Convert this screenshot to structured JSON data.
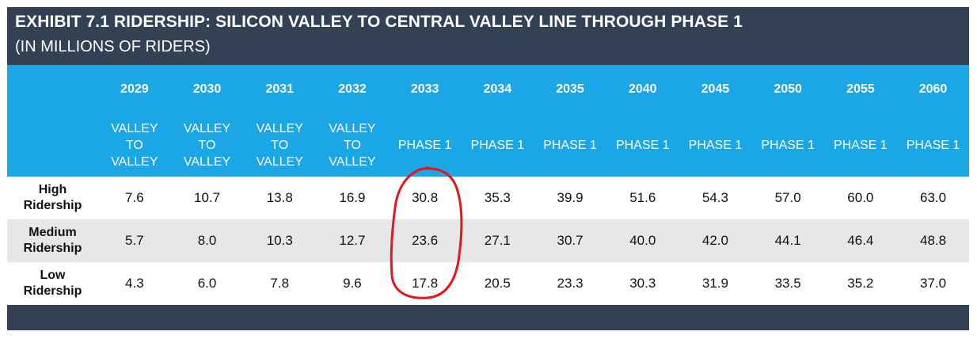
{
  "exhibit": {
    "title": "EXHIBIT 7.1 RIDERSHIP: SILICON VALLEY TO CENTRAL VALLEY LINE THROUGH PHASE 1",
    "subtitle": "(IN MILLIONS OF RIDERS)"
  },
  "table": {
    "years": [
      "2029",
      "2030",
      "2031",
      "2032",
      "2033",
      "2034",
      "2035",
      "2040",
      "2045",
      "2050",
      "2055",
      "2060"
    ],
    "phases": [
      "VALLEY\nTO\nVALLEY",
      "VALLEY\nTO\nVALLEY",
      "VALLEY\nTO\nVALLEY",
      "VALLEY\nTO\nVALLEY",
      "PHASE 1",
      "PHASE 1",
      "PHASE 1",
      "PHASE 1",
      "PHASE 1",
      "PHASE 1",
      "PHASE 1",
      "PHASE 1"
    ],
    "rows": [
      {
        "label": "High\nRidership",
        "values": [
          "7.6",
          "10.7",
          "13.8",
          "16.9",
          "30.8",
          "35.3",
          "39.9",
          "51.6",
          "54.3",
          "57.0",
          "60.0",
          "63.0"
        ]
      },
      {
        "label": "Medium\nRidership",
        "values": [
          "5.7",
          "8.0",
          "10.3",
          "12.7",
          "23.6",
          "27.1",
          "30.7",
          "40.0",
          "42.0",
          "44.1",
          "46.4",
          "48.8"
        ]
      },
      {
        "label": "Low\nRidership",
        "values": [
          "4.3",
          "6.0",
          "7.8",
          "9.6",
          "17.8",
          "20.5",
          "23.3",
          "30.3",
          "31.9",
          "33.5",
          "35.2",
          "37.0"
        ]
      }
    ]
  },
  "colors": {
    "title_bar": "#334155",
    "header_band": "#1ba6e6",
    "alt_row": "#e6e7e8",
    "annotation": "#e8141b"
  }
}
